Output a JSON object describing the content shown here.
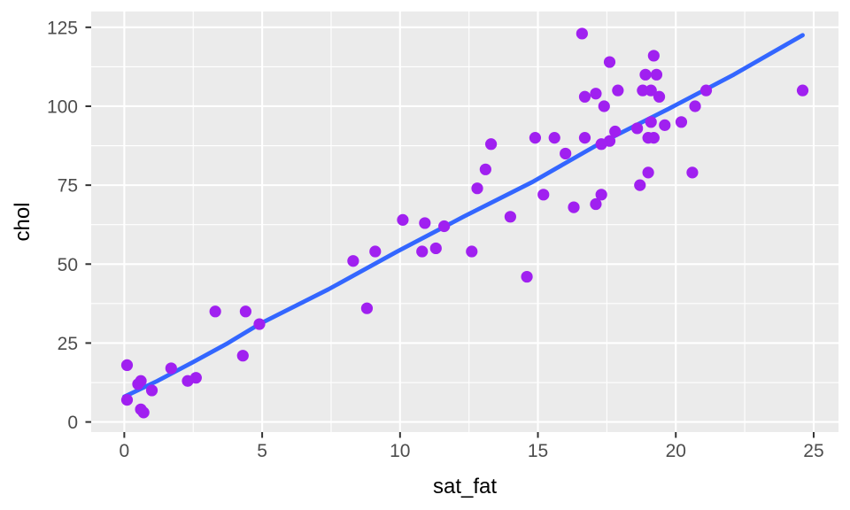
{
  "chart_data": {
    "type": "scatter",
    "title": "",
    "xlabel": "sat_fat",
    "ylabel": "chol",
    "x_ticks": [
      0,
      5,
      10,
      15,
      20,
      25
    ],
    "y_ticks": [
      0,
      25,
      50,
      75,
      100,
      125
    ],
    "x_minor_ticks": [
      2.5,
      7.5,
      12.5,
      17.5,
      22.5
    ],
    "y_minor_ticks": [
      12.5,
      37.5,
      62.5,
      87.5,
      112.5
    ],
    "x_range": [
      -1.2,
      25.9
    ],
    "y_range": [
      -3.2,
      130
    ],
    "grid": "major+minor",
    "legend": "none",
    "points": [
      [
        0.1,
        7
      ],
      [
        0.1,
        18
      ],
      [
        0.5,
        12
      ],
      [
        0.6,
        4
      ],
      [
        0.6,
        13
      ],
      [
        0.7,
        3
      ],
      [
        1.0,
        10
      ],
      [
        1.7,
        17
      ],
      [
        2.3,
        13
      ],
      [
        2.6,
        14
      ],
      [
        3.3,
        35
      ],
      [
        4.3,
        21
      ],
      [
        4.4,
        35
      ],
      [
        4.9,
        31
      ],
      [
        8.3,
        51
      ],
      [
        8.8,
        36
      ],
      [
        9.1,
        54
      ],
      [
        10.1,
        64
      ],
      [
        10.8,
        54
      ],
      [
        10.9,
        63
      ],
      [
        11.3,
        55
      ],
      [
        11.6,
        62
      ],
      [
        12.6,
        54
      ],
      [
        12.8,
        74
      ],
      [
        13.1,
        80
      ],
      [
        13.3,
        88
      ],
      [
        14.0,
        65
      ],
      [
        14.6,
        46
      ],
      [
        14.9,
        90
      ],
      [
        15.2,
        72
      ],
      [
        15.6,
        90
      ],
      [
        16.0,
        85
      ],
      [
        16.3,
        68
      ],
      [
        16.6,
        123
      ],
      [
        16.7,
        90
      ],
      [
        16.7,
        103
      ],
      [
        17.1,
        69
      ],
      [
        17.1,
        104
      ],
      [
        17.3,
        72
      ],
      [
        17.3,
        88
      ],
      [
        17.4,
        100
      ],
      [
        17.6,
        89
      ],
      [
        17.6,
        114
      ],
      [
        17.8,
        92
      ],
      [
        17.9,
        105
      ],
      [
        18.6,
        93
      ],
      [
        18.7,
        75
      ],
      [
        18.8,
        105
      ],
      [
        18.9,
        110
      ],
      [
        19.0,
        79
      ],
      [
        19.0,
        90
      ],
      [
        19.1,
        95
      ],
      [
        19.1,
        105
      ],
      [
        19.2,
        90
      ],
      [
        19.2,
        116
      ],
      [
        19.3,
        110
      ],
      [
        19.4,
        103
      ],
      [
        19.6,
        94
      ],
      [
        20.2,
        95
      ],
      [
        20.6,
        79
      ],
      [
        20.7,
        100
      ],
      [
        21.1,
        105
      ],
      [
        24.6,
        105
      ]
    ],
    "trend_line": {
      "label": "smooth-fit",
      "points": [
        [
          0,
          8
        ],
        [
          1.2,
          13
        ],
        [
          2.5,
          19
        ],
        [
          3.7,
          24.7
        ],
        [
          4.9,
          31
        ],
        [
          7.4,
          42
        ],
        [
          9.9,
          54
        ],
        [
          12.3,
          65
        ],
        [
          14.8,
          76
        ],
        [
          17.2,
          88
        ],
        [
          19.7,
          99
        ],
        [
          22.1,
          110
        ],
        [
          24.6,
          122.5
        ]
      ]
    },
    "colors": {
      "point": "#A020F0",
      "line": "#3366FF",
      "panel_bg": "#EBEBEB",
      "grid": "#FFFFFF",
      "tick_text": "#4D4D4D",
      "tick_mark": "#333333",
      "axis_title": "#000000",
      "outer_bg": "#FFFFFF"
    }
  }
}
